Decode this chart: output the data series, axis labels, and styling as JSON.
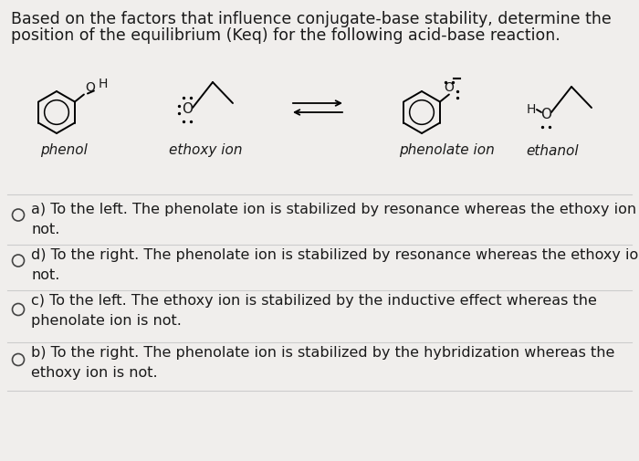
{
  "title_line1": "Based on the factors that influence conjugate-base stability, determine the",
  "title_line2": "position of the equilibrium (Keq) for the following acid-base reaction.",
  "bg_color": "#f0eeec",
  "text_color": "#1a1a1a",
  "line_color": "#cccccc",
  "molecule_labels": [
    "phenol",
    "ethoxy ion",
    "phenolate ion",
    "ethanol"
  ],
  "options": [
    "a) To the left. The phenolate ion is stabilized by resonance whereas the ethoxy ion is\n    not.",
    "d) To the right. The phenolate ion is stabilized by resonance whereas the ethoxy ion is\n    not.",
    "c) To the left. The ethoxy ion is stabilized by the inductive effect whereas the\n    phenolate ion is not.",
    "b) To the right. The phenolate ion is stabilized by the hybridization whereas the\n    ethoxy ion is not."
  ],
  "font_size_title": 12.5,
  "font_size_options": 11.5,
  "font_size_labels": 11,
  "font_size_mol": 11
}
